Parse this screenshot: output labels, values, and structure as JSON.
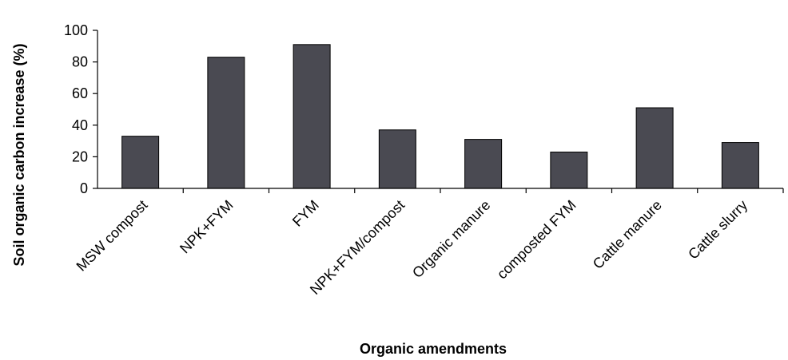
{
  "chart_data": {
    "type": "bar",
    "title": "",
    "xlabel": "Organic amendments",
    "ylabel": "Soil organic carbon increase (%)",
    "ylim": [
      0,
      100
    ],
    "yticks": [
      0,
      20,
      40,
      60,
      80,
      100
    ],
    "grid": false,
    "legend": "none",
    "bar_color": "#4a4a52",
    "categories": [
      "MSW compost",
      "NPK+FYM",
      "FYM",
      "NPK+FYM/compost",
      "Organic manure",
      "composted FYM",
      "Cattle manure",
      "Cattle slurry"
    ],
    "values": [
      33,
      83,
      91,
      37,
      31,
      23,
      51,
      29
    ]
  }
}
